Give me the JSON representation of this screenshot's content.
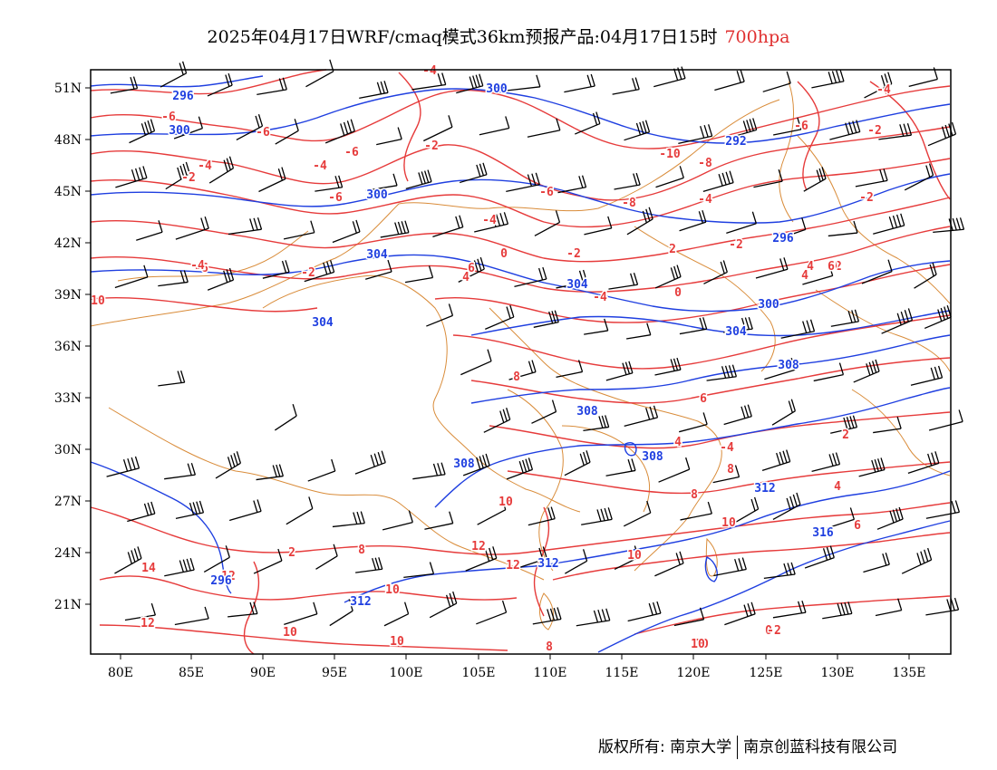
{
  "title": {
    "main": "2025年04月17日WRF/cmaq模式36km预报产品:04月17日15时",
    "level": "700hpa"
  },
  "axes": {
    "x_ticks": [
      "80E",
      "85E",
      "90E",
      "95E",
      "100E",
      "105E",
      "110E",
      "115E",
      "120E",
      "125E",
      "130E",
      "135E"
    ],
    "y_ticks": [
      "51N",
      "48N",
      "45N",
      "42N",
      "39N",
      "36N",
      "33N",
      "30N",
      "27N",
      "24N",
      "21N"
    ]
  },
  "colors": {
    "geopotential": "#1f3fe0",
    "temperature": "#e63b3b",
    "borders": "#d98c3a",
    "barbs": "#000000"
  },
  "geopotential_labels": [
    "296",
    "300",
    "300",
    "300",
    "304",
    "304",
    "304",
    "300",
    "292",
    "296",
    "308",
    "308",
    "308",
    "308",
    "312",
    "312",
    "312",
    "316",
    "304",
    "296"
  ],
  "temperature_labels": [
    "-4",
    "-6",
    "-6",
    "-4",
    "-2",
    "-6",
    "-4",
    "-6",
    "-6",
    "-2",
    "-8",
    "-4",
    "-2",
    "-4",
    "-2",
    "-6",
    "-4",
    "-2",
    "0",
    "-2",
    "-4",
    "4",
    "6",
    "8",
    "10",
    "10",
    "12",
    "-10",
    "-8",
    "-6",
    "-4",
    "-2",
    "0",
    "2",
    "4",
    "4",
    "6",
    "8",
    "10",
    "10",
    "12",
    "14",
    "12",
    "10",
    "8",
    "10",
    "12",
    "10",
    "2",
    "4",
    "6",
    "8",
    "10",
    "0",
    "-2",
    "-4",
    "-2",
    "4",
    "2",
    "0",
    "2",
    "4",
    "6",
    "8",
    "10"
  ],
  "copyright": {
    "left": "版权所有: 南京大学",
    "right": "南京创蓝科技有限公司"
  }
}
